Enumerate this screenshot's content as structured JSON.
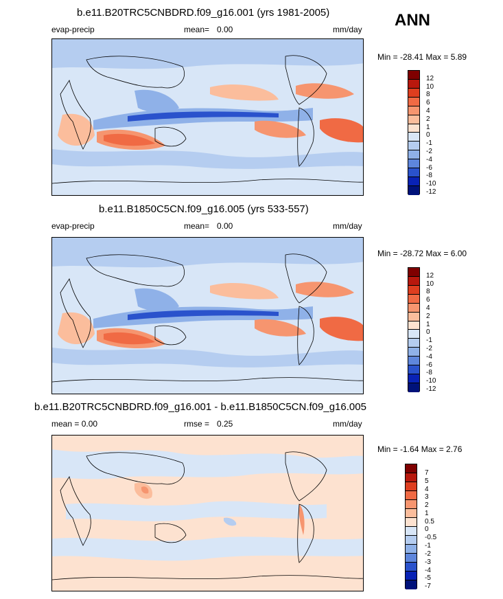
{
  "season": "ANN",
  "panels": [
    {
      "title": "b.e11.B20TRC5CNBDRD.f09_g16.001 (yrs 1981-2005)",
      "left_label": "evap-precip",
      "mean_label": "mean=",
      "mean_value": "0.00",
      "units": "mm/day",
      "minmax": "Min = -28.41 Max =   5.89",
      "colors": [
        "#7f0000",
        "#b8180d",
        "#de3e1f",
        "#f06a44",
        "#f6956f",
        "#fbbd9c",
        "#fde2d0",
        "#d8e6f7",
        "#b5cdf0",
        "#8fb1e8",
        "#5e86dc",
        "#2a52cc",
        "#0922b5",
        "#00127a"
      ],
      "ticks": [
        "12",
        "10",
        "8",
        "6",
        "4",
        "2",
        "1",
        "0",
        "-1",
        "-2",
        "-4",
        "-6",
        "-8",
        "-10",
        "-12"
      ]
    },
    {
      "title": "b.e11.B1850C5CN.f09_g16.005 (yrs 533-557)",
      "left_label": "evap-precip",
      "mean_label": "mean=",
      "mean_value": "0.00",
      "units": "mm/day",
      "minmax": "Min = -28.72 Max =   6.00",
      "colors": [
        "#7f0000",
        "#b8180d",
        "#de3e1f",
        "#f06a44",
        "#f6956f",
        "#fbbd9c",
        "#fde2d0",
        "#d8e6f7",
        "#b5cdf0",
        "#8fb1e8",
        "#5e86dc",
        "#2a52cc",
        "#0922b5",
        "#00127a"
      ],
      "ticks": [
        "12",
        "10",
        "8",
        "6",
        "4",
        "2",
        "1",
        "0",
        "-1",
        "-2",
        "-4",
        "-6",
        "-8",
        "-10",
        "-12"
      ]
    },
    {
      "title": "b.e11.B20TRC5CNBDRD.f09_g16.001 - b.e11.B1850C5CN.f09_g16.005",
      "left_label": "mean =   0.00",
      "mean_label": "rmse =",
      "mean_value": "0.25",
      "units": "mm/day",
      "minmax": "Min =  -1.64 Max =   2.76",
      "colors": [
        "#7f0000",
        "#b8180d",
        "#de3e1f",
        "#f06a44",
        "#f6956f",
        "#fbbd9c",
        "#fde2d0",
        "#d8e6f7",
        "#b5cdf0",
        "#8fb1e8",
        "#5e86dc",
        "#2a52cc",
        "#0922b5",
        "#00127a"
      ],
      "ticks": [
        "7",
        "5",
        "4",
        "3",
        "2",
        "1",
        "0.5",
        "0",
        "-0.5",
        "-1",
        "-2",
        "-3",
        "-4",
        "-5",
        "-7"
      ]
    }
  ]
}
